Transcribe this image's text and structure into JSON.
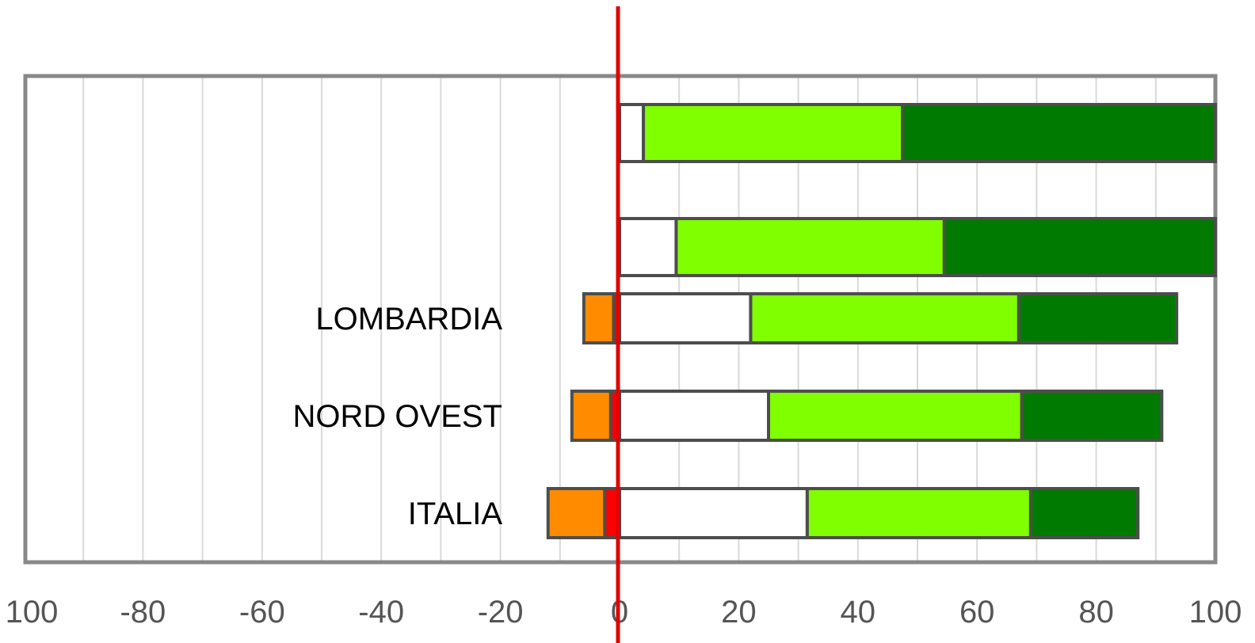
{
  "chart_data": {
    "type": "bar",
    "orientation": "horizontal",
    "stacked": true,
    "diverging": true,
    "categories": [
      "",
      "",
      "LOMBARDIA",
      "NORD OVEST",
      "ITALIA"
    ],
    "series": [
      {
        "values": [
          0,
          0,
          -1,
          -1.5,
          -2.5
        ],
        "color": "#ff0000"
      },
      {
        "values": [
          0,
          0,
          -5,
          -6.5,
          -9.5
        ],
        "color": "#ff8c00"
      },
      {
        "values": [
          4,
          9.5,
          22,
          25,
          31.5
        ],
        "color": "#ffffff"
      },
      {
        "values": [
          43.5,
          45,
          45,
          42.5,
          37.5
        ],
        "color": "#80ff00"
      },
      {
        "values": [
          52.5,
          45.5,
          26.5,
          23.5,
          18
        ],
        "color": "#007a00"
      }
    ],
    "x_ticks": [
      "100",
      "-80",
      "-60",
      "-40",
      "-20",
      "0",
      "20",
      "40",
      "60",
      "80",
      "100"
    ],
    "xlim": [
      -100,
      100
    ],
    "grid": true,
    "zero_line_color": "#e00000",
    "title": "",
    "xlabel": "",
    "ylabel": ""
  }
}
